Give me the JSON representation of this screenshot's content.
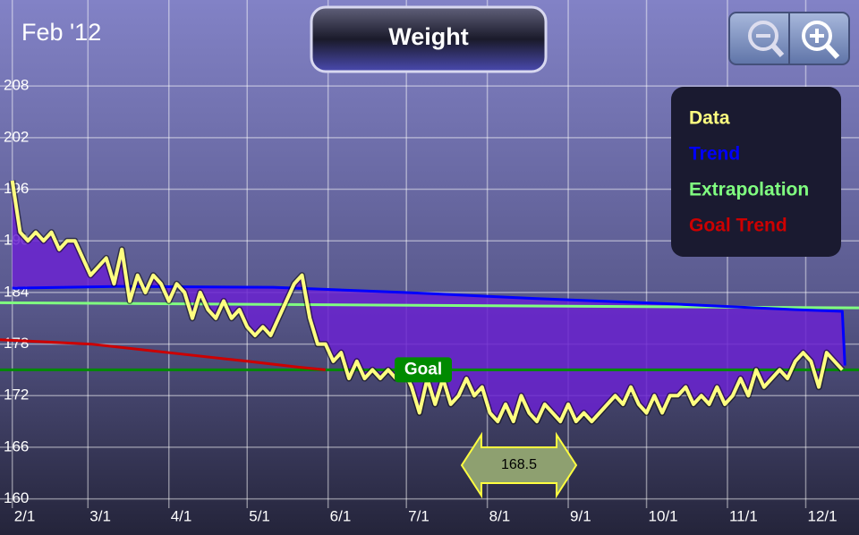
{
  "chart_data": {
    "type": "line",
    "title": "Weight",
    "date_label": "Feb '12",
    "xlim": [
      -4.7,
      324.4
    ],
    "ylim": [
      155.8,
      218
    ],
    "xticks": [
      {
        "value": 0,
        "label": "2/1"
      },
      {
        "value": 29,
        "label": "3/1"
      },
      {
        "value": 60,
        "label": "4/1"
      },
      {
        "value": 90,
        "label": "5/1"
      },
      {
        "value": 121,
        "label": "6/1"
      },
      {
        "value": 151,
        "label": "7/1"
      },
      {
        "value": 182,
        "label": "8/1"
      },
      {
        "value": 213,
        "label": "9/1"
      },
      {
        "value": 243,
        "label": "10/1"
      },
      {
        "value": 274,
        "label": "11/1"
      },
      {
        "value": 304,
        "label": "12/1"
      }
    ],
    "yticks": [
      160,
      166,
      172,
      178,
      184,
      190,
      196,
      202,
      208
    ],
    "grid": true,
    "goal": {
      "label": "Goal",
      "value": 175,
      "color": "#008a00"
    },
    "marker_value": 168.5,
    "series": [
      {
        "name": "Data",
        "color": "#ffff80",
        "x": [
          0,
          3,
          6,
          9,
          12,
          15,
          18,
          21,
          24,
          27,
          30,
          33,
          36,
          39,
          42,
          45,
          48,
          51,
          54,
          57,
          60,
          63,
          66,
          69,
          72,
          75,
          78,
          81,
          84,
          87,
          90,
          93,
          96,
          99,
          102,
          105,
          108,
          111,
          114,
          117,
          120,
          123,
          126,
          129,
          132,
          135,
          138,
          141,
          144,
          147,
          150,
          153,
          156,
          159,
          162,
          165,
          168,
          171,
          174,
          177,
          180,
          183,
          186,
          189,
          192,
          195,
          198,
          201,
          204,
          207,
          210,
          213,
          216,
          219,
          222,
          225,
          228,
          231,
          234,
          237,
          240,
          243,
          246,
          249,
          252,
          255,
          258,
          261,
          264,
          267,
          270,
          273,
          276,
          279,
          282,
          285,
          288,
          291,
          294,
          297,
          300,
          303,
          306,
          309,
          312,
          315,
          318
        ],
        "values": [
          197,
          191,
          190,
          191,
          190,
          191,
          189,
          190,
          190,
          188,
          186,
          187,
          188,
          185,
          189,
          183,
          186,
          184,
          186,
          185,
          183,
          185,
          184,
          181,
          184,
          182,
          181,
          183,
          181,
          182,
          180,
          179,
          180,
          179,
          181,
          183,
          185,
          186,
          181,
          178,
          178,
          176,
          177,
          174,
          176,
          174,
          175,
          174,
          175,
          174,
          175,
          173,
          170,
          174,
          171,
          174,
          171,
          172,
          174,
          172,
          173,
          170,
          169,
          171,
          169,
          172,
          170,
          169,
          171,
          170,
          169,
          171,
          169,
          170,
          169,
          170,
          171,
          172,
          171,
          173,
          171,
          170,
          172,
          170,
          172,
          172,
          173,
          171,
          172,
          171,
          173,
          171,
          172,
          174,
          172,
          175,
          173,
          174,
          175,
          174,
          176,
          177,
          176,
          173,
          177,
          176,
          175
        ]
      },
      {
        "name": "Trend",
        "color": "#0000ff",
        "x": [
          0,
          40,
          100,
          150,
          200,
          250,
          300,
          318,
          319
        ],
        "values": [
          184.5,
          184.7,
          184.6,
          184,
          183.3,
          182.7,
          182,
          181.8,
          175.5
        ]
      },
      {
        "name": "Extrapolation",
        "color": "#80ff80",
        "x": [
          -4.7,
          324.4
        ],
        "values": [
          182.8,
          182.2
        ]
      },
      {
        "name": "Goal Trend",
        "color": "#cc0000",
        "x": [
          -4.7,
          30,
          60,
          90,
          110,
          120
        ],
        "values": [
          178.5,
          178,
          177,
          176,
          175.3,
          175
        ]
      }
    ]
  }
}
